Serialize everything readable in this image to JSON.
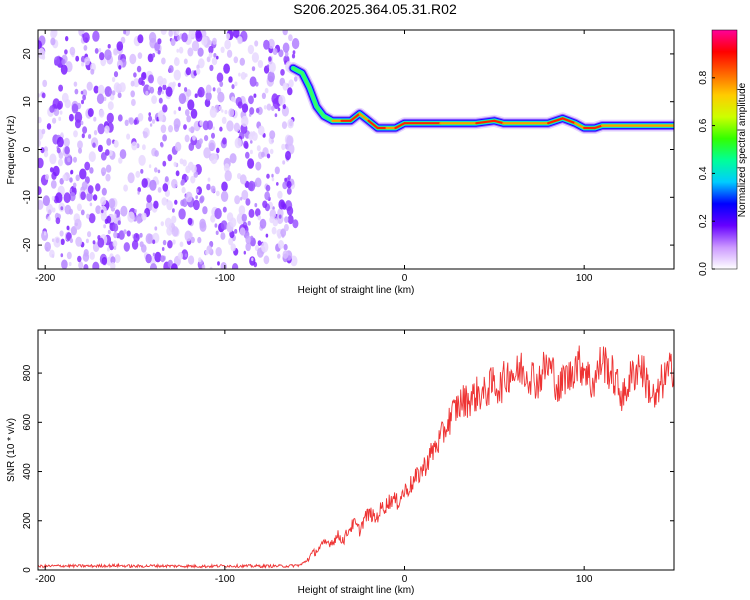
{
  "title": "S206.2025.364.05.31.R02",
  "chart_data": [
    {
      "type": "heatmap",
      "name": "spectrogram",
      "xlabel": "Height of straight line (km)",
      "ylabel": "Frequency (Hz)",
      "xlim": [
        -204,
        150
      ],
      "ylim": [
        -25,
        25
      ],
      "xticks": [
        -200,
        -100,
        0,
        100
      ],
      "xtick_labels": [
        "-200",
        "-100",
        "0",
        "100"
      ],
      "yticks": [
        20,
        10,
        0,
        -10,
        -20
      ],
      "ytick_labels": [
        "20",
        "10",
        "0",
        "-10",
        "-20"
      ],
      "noise_region_x": [
        -204,
        -60
      ],
      "signal_path": [
        {
          "x": -62,
          "y": 17
        },
        {
          "x": -57,
          "y": 16
        },
        {
          "x": -53,
          "y": 13
        },
        {
          "x": -49,
          "y": 9
        },
        {
          "x": -45,
          "y": 7
        },
        {
          "x": -40,
          "y": 6
        },
        {
          "x": -35,
          "y": 6
        },
        {
          "x": -30,
          "y": 6
        },
        {
          "x": -25,
          "y": 7.5
        },
        {
          "x": -20,
          "y": 6
        },
        {
          "x": -15,
          "y": 4.5
        },
        {
          "x": -10,
          "y": 4.5
        },
        {
          "x": -5,
          "y": 4.5
        },
        {
          "x": 0,
          "y": 5.5
        },
        {
          "x": 20,
          "y": 5.5
        },
        {
          "x": 40,
          "y": 5.5
        },
        {
          "x": 50,
          "y": 6
        },
        {
          "x": 55,
          "y": 5.5
        },
        {
          "x": 80,
          "y": 5.5
        },
        {
          "x": 88,
          "y": 6.5
        },
        {
          "x": 95,
          "y": 5.5
        },
        {
          "x": 100,
          "y": 4.5
        },
        {
          "x": 106,
          "y": 4.5
        },
        {
          "x": 110,
          "y": 5
        },
        {
          "x": 150,
          "y": 5
        }
      ],
      "colorbar": {
        "label": "Normalized spectral amplitude",
        "range": [
          0,
          1
        ],
        "ticks": [
          0.0,
          0.2,
          0.4,
          0.6,
          0.8
        ],
        "tick_labels": [
          "0.0",
          "0.2",
          "0.4",
          "0.6",
          "0.8"
        ],
        "colors": [
          "#ffffff",
          "#cc99ff",
          "#6600ff",
          "#0000ff",
          "#00ccff",
          "#00ff99",
          "#33ff00",
          "#ccff00",
          "#ffcc00",
          "#ff6600",
          "#ff0000",
          "#ff0099"
        ]
      }
    },
    {
      "type": "line",
      "name": "snr",
      "xlabel": "Height of straight line (km)",
      "ylabel": "SNR (10 * v/v)",
      "xlim": [
        -204,
        150
      ],
      "ylim": [
        0,
        975
      ],
      "xticks": [
        -200,
        -100,
        0,
        100
      ],
      "xtick_labels": [
        "-200",
        "-100",
        "0",
        "100"
      ],
      "yticks": [
        0,
        200,
        400,
        600,
        800
      ],
      "ytick_labels": [
        "0",
        "200",
        "400",
        "600",
        "800"
      ],
      "color": "#ee3333",
      "series": [
        {
          "name": "SNR",
          "x": [
            -204,
            -190,
            -175,
            -160,
            -150,
            -140,
            -125,
            -110,
            -100,
            -90,
            -75,
            -65,
            -58,
            -55,
            -52,
            -48,
            -44,
            -40,
            -37,
            -34,
            -31,
            -28,
            -25,
            -22,
            -19,
            -16,
            -13,
            -10,
            -7,
            -4,
            -1,
            2,
            5,
            8,
            11,
            14,
            17,
            20,
            23,
            26,
            29,
            32,
            35,
            38,
            41,
            44,
            47,
            50,
            53,
            56,
            59,
            62,
            65,
            68,
            71,
            74,
            77,
            80,
            83,
            86,
            89,
            92,
            95,
            98,
            101,
            104,
            107,
            110,
            113,
            116,
            119,
            122,
            125,
            128,
            131,
            134,
            137,
            140,
            143,
            146,
            150
          ],
          "y": [
            15,
            17,
            16,
            18,
            15,
            17,
            16,
            15,
            17,
            16,
            16,
            16,
            20,
            35,
            60,
            85,
            110,
            115,
            140,
            120,
            165,
            190,
            160,
            215,
            230,
            205,
            250,
            265,
            290,
            275,
            310,
            335,
            355,
            390,
            420,
            460,
            500,
            530,
            580,
            625,
            660,
            685,
            690,
            700,
            720,
            710,
            740,
            760,
            740,
            780,
            810,
            790,
            820,
            800,
            790,
            760,
            810,
            830,
            800,
            720,
            790,
            780,
            840,
            830,
            820,
            750,
            790,
            860,
            820,
            790,
            740,
            700,
            770,
            800,
            840,
            780,
            720,
            680,
            760,
            790,
            830
          ]
        }
      ]
    }
  ]
}
